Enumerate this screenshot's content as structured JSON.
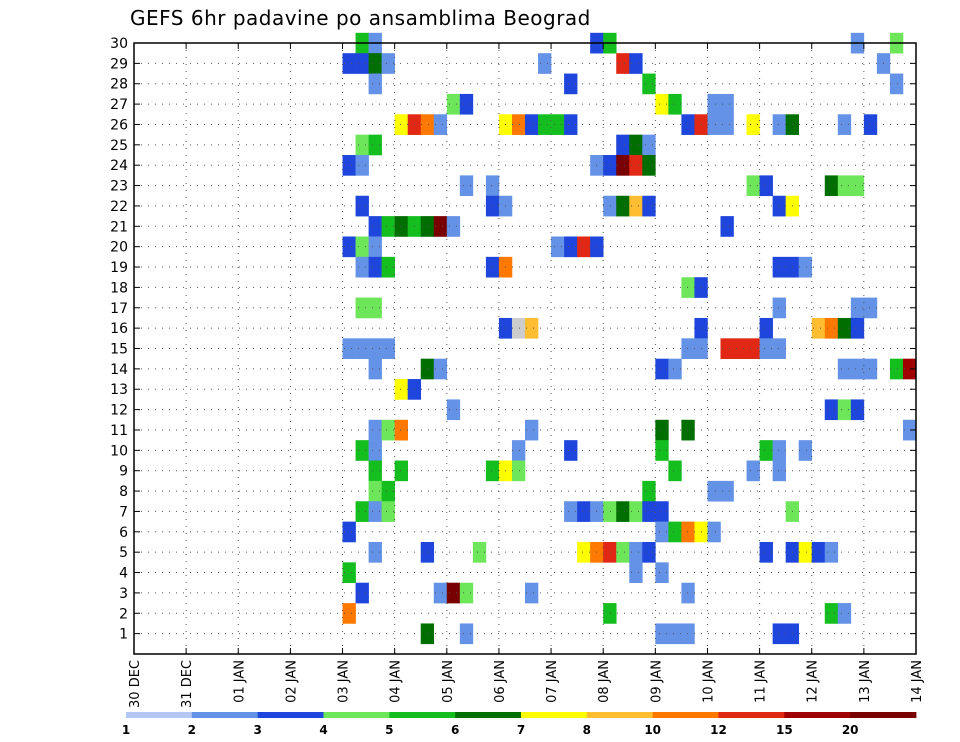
{
  "chart_data": {
    "type": "heatmap",
    "title": "GEFS 6hr padavine po ansamblima Beograd",
    "xlabel": "",
    "ylabel": "",
    "x_ticks": [
      "30 DEC",
      "31 DEC",
      "01 JAN",
      "02 JAN",
      "03 JAN",
      "04 JAN",
      "05 JAN",
      "06 JAN",
      "07 JAN",
      "08 JAN",
      "09 JAN",
      "10 JAN",
      "11 JAN",
      "12 JAN",
      "13 JAN",
      "14 JAN"
    ],
    "x_range_days": [
      0,
      15
    ],
    "y_range": [
      0,
      30
    ],
    "y_ticks": [
      1,
      2,
      3,
      4,
      5,
      6,
      7,
      8,
      9,
      10,
      11,
      12,
      13,
      14,
      15,
      16,
      17,
      18,
      19,
      20,
      21,
      22,
      23,
      24,
      25,
      26,
      27,
      28,
      29,
      30
    ],
    "grid": true,
    "legend": {
      "placement": "bottom",
      "boundaries": [
        "1",
        "2",
        "3",
        "4",
        "5",
        "6",
        "7",
        "8",
        "10",
        "12",
        "15",
        "20"
      ],
      "colors": [
        "#b4c8f5",
        "#6492e6",
        "#1e46dc",
        "#6ee65a",
        "#14be1e",
        "#006e00",
        "#ffff00",
        "#ffbe32",
        "#ff7800",
        "#e12814",
        "#a00000",
        "#780000"
      ]
    },
    "cells": [
      [
        30,
        4.25,
        4
      ],
      [
        30,
        4.5,
        1
      ],
      [
        30,
        8.75,
        2
      ],
      [
        30,
        9,
        4
      ],
      [
        30,
        13.75,
        1
      ],
      [
        30,
        14.5,
        3
      ],
      [
        29,
        4,
        2
      ],
      [
        29,
        4.25,
        2
      ],
      [
        29,
        4.5,
        5
      ],
      [
        29,
        4.75,
        1
      ],
      [
        29,
        7.75,
        1
      ],
      [
        29,
        9.25,
        9
      ],
      [
        29,
        9.5,
        2
      ],
      [
        29,
        14.25,
        1
      ],
      [
        28,
        4.5,
        1
      ],
      [
        28,
        8.25,
        2
      ],
      [
        28,
        9.75,
        4
      ],
      [
        28,
        14.5,
        1
      ],
      [
        27,
        6,
        3
      ],
      [
        27,
        6.25,
        2
      ],
      [
        27,
        10,
        6
      ],
      [
        27,
        10.25,
        4
      ],
      [
        27,
        11,
        1
      ],
      [
        27,
        11.25,
        1
      ],
      [
        26,
        5,
        6
      ],
      [
        26,
        5.25,
        9
      ],
      [
        26,
        5.5,
        8
      ],
      [
        26,
        5.75,
        1
      ],
      [
        26,
        7,
        6
      ],
      [
        26,
        7.25,
        8
      ],
      [
        26,
        7.5,
        2
      ],
      [
        26,
        7.75,
        4
      ],
      [
        26,
        8,
        4
      ],
      [
        26,
        8.25,
        2
      ],
      [
        26,
        10.5,
        2
      ],
      [
        26,
        10.75,
        9
      ],
      [
        26,
        11,
        1
      ],
      [
        26,
        11.25,
        1
      ],
      [
        26,
        11.75,
        6
      ],
      [
        26,
        12.25,
        1
      ],
      [
        26,
        12.5,
        5
      ],
      [
        26,
        13.5,
        1
      ],
      [
        26,
        14,
        2
      ],
      [
        25,
        4.25,
        3
      ],
      [
        25,
        4.5,
        4
      ],
      [
        25,
        9.25,
        2
      ],
      [
        25,
        9.5,
        5
      ],
      [
        25,
        9.75,
        1
      ],
      [
        24,
        4,
        2
      ],
      [
        24,
        4.25,
        1
      ],
      [
        24,
        8.75,
        1
      ],
      [
        24,
        9,
        2
      ],
      [
        24,
        9.25,
        11
      ],
      [
        24,
        9.5,
        9
      ],
      [
        24,
        9.75,
        5
      ],
      [
        23,
        6.25,
        1
      ],
      [
        23,
        6.75,
        1
      ],
      [
        23,
        11.75,
        3
      ],
      [
        23,
        12,
        2
      ],
      [
        23,
        13.25,
        5
      ],
      [
        23,
        13.5,
        3
      ],
      [
        23,
        13.75,
        3
      ],
      [
        22,
        4.25,
        2
      ],
      [
        22,
        6.75,
        2
      ],
      [
        22,
        7,
        1
      ],
      [
        22,
        9,
        1
      ],
      [
        22,
        9.25,
        5
      ],
      [
        22,
        9.5,
        7
      ],
      [
        22,
        9.75,
        2
      ],
      [
        22,
        12.25,
        2
      ],
      [
        22,
        12.5,
        6
      ],
      [
        21,
        4.5,
        2
      ],
      [
        21,
        4.75,
        4
      ],
      [
        21,
        5,
        5
      ],
      [
        21,
        5.25,
        4
      ],
      [
        21,
        5.5,
        5
      ],
      [
        21,
        5.75,
        11
      ],
      [
        21,
        6,
        1
      ],
      [
        21,
        11.25,
        2
      ],
      [
        20,
        4,
        2
      ],
      [
        20,
        4.25,
        3
      ],
      [
        20,
        4.5,
        1
      ],
      [
        20,
        8,
        1
      ],
      [
        20,
        8.25,
        2
      ],
      [
        20,
        8.5,
        9
      ],
      [
        20,
        8.75,
        2
      ],
      [
        19,
        4.25,
        1
      ],
      [
        19,
        4.5,
        2
      ],
      [
        19,
        4.75,
        4
      ],
      [
        19,
        6.75,
        2
      ],
      [
        19,
        7,
        8
      ],
      [
        19,
        12.25,
        2
      ],
      [
        19,
        12.5,
        2
      ],
      [
        19,
        12.75,
        1
      ],
      [
        18,
        10.5,
        3
      ],
      [
        18,
        10.75,
        2
      ],
      [
        17,
        4.25,
        3
      ],
      [
        17,
        4.5,
        3
      ],
      [
        17,
        12.25,
        1
      ],
      [
        17,
        13.75,
        1
      ],
      [
        17,
        14,
        1
      ],
      [
        16,
        7,
        2
      ],
      [
        16,
        7.25,
        12
      ],
      [
        16,
        7.5,
        7
      ],
      [
        16,
        10.75,
        2
      ],
      [
        16,
        12,
        2
      ],
      [
        16,
        13,
        7
      ],
      [
        16,
        13.25,
        8
      ],
      [
        16,
        13.5,
        5
      ],
      [
        16,
        13.75,
        2
      ],
      [
        15,
        4,
        1
      ],
      [
        15,
        4.25,
        1
      ],
      [
        15,
        4.5,
        1
      ],
      [
        15,
        4.75,
        1
      ],
      [
        15,
        10.5,
        1
      ],
      [
        15,
        10.75,
        1
      ],
      [
        15,
        11.25,
        9
      ],
      [
        15,
        11.5,
        9
      ],
      [
        15,
        11.75,
        9
      ],
      [
        15,
        12,
        1
      ],
      [
        15,
        12.25,
        1
      ],
      [
        14,
        4.5,
        1
      ],
      [
        14,
        5.5,
        5
      ],
      [
        14,
        5.75,
        1
      ],
      [
        14,
        10,
        2
      ],
      [
        14,
        10.25,
        1
      ],
      [
        14,
        13.5,
        1
      ],
      [
        14,
        13.75,
        1
      ],
      [
        14,
        14,
        1
      ],
      [
        14,
        14.5,
        4
      ],
      [
        14,
        14.75,
        10
      ],
      [
        13,
        5,
        6
      ],
      [
        13,
        5.25,
        2
      ],
      [
        12,
        6,
        1
      ],
      [
        12,
        13.25,
        2
      ],
      [
        12,
        13.5,
        3
      ],
      [
        12,
        13.75,
        2
      ],
      [
        11,
        4.5,
        1
      ],
      [
        11,
        4.75,
        3
      ],
      [
        11,
        5,
        8
      ],
      [
        11,
        7.5,
        1
      ],
      [
        11,
        10,
        5
      ],
      [
        11,
        10.5,
        5
      ],
      [
        11,
        14.75,
        1
      ],
      [
        10,
        4.25,
        4
      ],
      [
        10,
        4.5,
        1
      ],
      [
        10,
        7.25,
        1
      ],
      [
        10,
        8.25,
        2
      ],
      [
        10,
        10,
        4
      ],
      [
        10,
        12,
        4
      ],
      [
        10,
        12.25,
        1
      ],
      [
        10,
        12.75,
        1
      ],
      [
        9,
        4.5,
        4
      ],
      [
        9,
        5,
        4
      ],
      [
        9,
        6.75,
        4
      ],
      [
        9,
        7,
        6
      ],
      [
        9,
        7.25,
        3
      ],
      [
        9,
        10.25,
        4
      ],
      [
        9,
        11.75,
        1
      ],
      [
        9,
        12.25,
        1
      ],
      [
        8,
        4.5,
        3
      ],
      [
        8,
        4.75,
        4
      ],
      [
        8,
        9.75,
        4
      ],
      [
        8,
        11,
        1
      ],
      [
        8,
        11.25,
        1
      ],
      [
        7,
        4.25,
        4
      ],
      [
        7,
        4.5,
        1
      ],
      [
        7,
        4.75,
        3
      ],
      [
        7,
        8.25,
        1
      ],
      [
        7,
        8.5,
        2
      ],
      [
        7,
        8.75,
        1
      ],
      [
        7,
        9,
        3
      ],
      [
        7,
        9.25,
        5
      ],
      [
        7,
        9.5,
        3
      ],
      [
        7,
        9.75,
        2
      ],
      [
        7,
        10,
        2
      ],
      [
        7,
        12.5,
        3
      ],
      [
        6,
        4,
        2
      ],
      [
        6,
        10,
        1
      ],
      [
        6,
        10.25,
        4
      ],
      [
        6,
        10.5,
        8
      ],
      [
        6,
        10.75,
        6
      ],
      [
        6,
        11,
        1
      ],
      [
        5,
        4.5,
        1
      ],
      [
        5,
        5.5,
        2
      ],
      [
        5,
        6.5,
        3
      ],
      [
        5,
        8.5,
        6
      ],
      [
        5,
        8.75,
        8
      ],
      [
        5,
        9,
        9
      ],
      [
        5,
        9.25,
        3
      ],
      [
        5,
        9.5,
        1
      ],
      [
        5,
        9.75,
        2
      ],
      [
        5,
        12,
        2
      ],
      [
        5,
        12.5,
        2
      ],
      [
        5,
        12.75,
        6
      ],
      [
        5,
        13,
        2
      ],
      [
        5,
        13.25,
        1
      ],
      [
        4,
        4,
        4
      ],
      [
        4,
        9.5,
        1
      ],
      [
        4,
        10,
        1
      ],
      [
        3,
        4.25,
        2
      ],
      [
        3,
        5.75,
        1
      ],
      [
        3,
        6,
        11
      ],
      [
        3,
        6.25,
        3
      ],
      [
        3,
        7.5,
        1
      ],
      [
        3,
        10.5,
        1
      ],
      [
        2,
        4,
        8
      ],
      [
        2,
        9,
        4
      ],
      [
        2,
        13.25,
        4
      ],
      [
        2,
        13.5,
        1
      ],
      [
        1,
        5.5,
        5
      ],
      [
        1,
        6.25,
        1
      ],
      [
        1,
        10,
        1
      ],
      [
        1,
        10.25,
        1
      ],
      [
        1,
        10.5,
        1
      ],
      [
        1,
        12.25,
        2
      ],
      [
        1,
        12.5,
        2
      ]
    ]
  }
}
